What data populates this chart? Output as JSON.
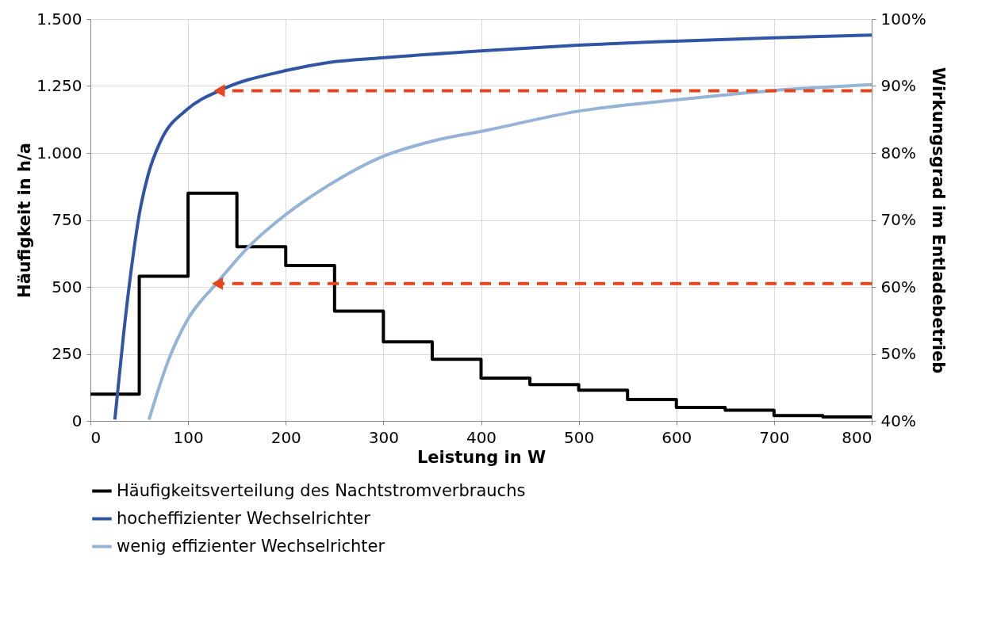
{
  "chart_data": {
    "type": "line",
    "xlabel": "Leistung in W",
    "ylabel": "Häufigkeit in h/a",
    "y2label": "Wirkungsgrad im Entladebetrieb",
    "xlim": [
      0,
      800
    ],
    "xticks": [
      0,
      100,
      200,
      300,
      400,
      500,
      600,
      700,
      800
    ],
    "ylim": [
      0,
      1500
    ],
    "yticks": [
      0,
      250,
      500,
      750,
      {
        "value": 1000,
        "label": "1.000"
      },
      {
        "value": 1250,
        "label": "1.250"
      },
      {
        "value": 1500,
        "label": "1.500"
      }
    ],
    "y2lim": [
      40,
      100
    ],
    "y2ticks": [
      {
        "value": 40,
        "label": "40%"
      },
      {
        "value": 50,
        "label": "50%"
      },
      {
        "value": 60,
        "label": "60%"
      },
      {
        "value": 70,
        "label": "70%"
      },
      {
        "value": 80,
        "label": "80%"
      },
      {
        "value": 90,
        "label": "90%"
      },
      {
        "value": 100,
        "label": "100%"
      }
    ],
    "grid": true,
    "legend": "bottom",
    "series": [
      {
        "name": "Häufigkeitsverteilung des Nachtstromverbrauchs",
        "type": "step",
        "color": "#000000",
        "x": [
          0,
          50,
          100,
          150,
          200,
          250,
          300,
          350,
          400,
          450,
          500,
          550,
          600,
          650,
          700,
          750,
          800
        ],
        "values": [
          100,
          540,
          850,
          650,
          580,
          410,
          295,
          230,
          160,
          135,
          115,
          80,
          50,
          40,
          20,
          15,
          15
        ]
      },
      {
        "name": "hocheffizienter Wechselrichter",
        "axis": "y2",
        "color": "#2f55a4",
        "x": [
          25,
          34,
          42,
          50,
          59,
          72,
          99,
          132,
          200,
          243,
          298,
          406,
          499,
          598,
          698,
          800
        ],
        "values": [
          40.2,
          53,
          62.8,
          70.8,
          76.7,
          81.8,
          86.5,
          89.3,
          92.3,
          93.5,
          94.2,
          95.3,
          96.1,
          96.7,
          97.2,
          97.6
        ]
      },
      {
        "name": "wenig effizienter Wechselrichter",
        "axis": "y2",
        "color": "#95b3d7",
        "x": [
          60,
          80,
          99,
          129,
          162,
          200,
          243,
          298,
          351,
          406,
          498,
          598,
          698,
          800
        ],
        "values": [
          40.2,
          49.1,
          55,
          60.5,
          66,
          70.8,
          75.1,
          79.4,
          81.8,
          83.4,
          86.2,
          87.9,
          89.3,
          90.2
        ]
      },
      {
        "axis": "y2",
        "color": "#e8461a",
        "line_style": "dashed",
        "marker": "triangle",
        "x": [
          800,
          132
        ],
        "values": [
          89.3,
          89.3
        ]
      },
      {
        "axis": "y2",
        "color": "#e8461a",
        "line_style": "dashed",
        "marker": "triangle",
        "x": [
          800,
          130
        ],
        "values": [
          60.5,
          60.5
        ]
      }
    ]
  }
}
